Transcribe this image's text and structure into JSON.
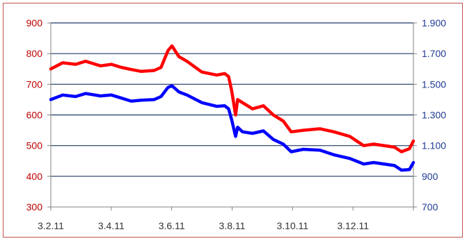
{
  "chart_data": {
    "type": "line",
    "title": "",
    "xlabel": "",
    "ylabel_left": "",
    "ylabel_right": "",
    "x_ticks": [
      "3.2.11",
      "3.4.11",
      "3.6.11",
      "3.8.11",
      "3.10.11",
      "3.12.11"
    ],
    "left_axis": {
      "ylim": [
        300,
        900
      ],
      "ticks": [
        "300",
        "400",
        "500",
        "600",
        "700",
        "800",
        "900"
      ]
    },
    "right_axis": {
      "ylim": [
        700,
        1900
      ],
      "ticks": [
        "700",
        "900",
        "1.100",
        "1.300",
        "1.500",
        "1.700",
        "1.900"
      ]
    },
    "grid": "horizontal",
    "x_range": [
      "2011-02-03",
      "2012-02-03"
    ],
    "series": [
      {
        "axis": "left",
        "color": "#ff0000",
        "x": [
          "2011-02-03",
          "2011-02-15",
          "2011-02-28",
          "2011-03-10",
          "2011-03-25",
          "2011-04-05",
          "2011-04-15",
          "2011-04-25",
          "2011-05-05",
          "2011-05-18",
          "2011-05-25",
          "2011-06-01",
          "2011-06-05",
          "2011-06-12",
          "2011-06-20",
          "2011-07-05",
          "2011-07-20",
          "2011-07-28",
          "2011-08-01",
          "2011-08-04",
          "2011-08-08",
          "2011-08-10",
          "2011-08-15",
          "2011-08-25",
          "2011-09-05",
          "2011-09-15",
          "2011-09-25",
          "2011-10-03",
          "2011-10-15",
          "2011-11-01",
          "2011-11-15",
          "2011-12-01",
          "2011-12-15",
          "2011-12-25",
          "2012-01-15",
          "2012-01-22",
          "2012-01-30",
          "2012-02-03"
        ],
        "y": [
          750,
          770,
          765,
          775,
          760,
          765,
          755,
          748,
          742,
          745,
          755,
          810,
          825,
          790,
          775,
          740,
          730,
          735,
          725,
          680,
          600,
          650,
          640,
          620,
          630,
          600,
          580,
          545,
          550,
          555,
          545,
          530,
          500,
          505,
          495,
          480,
          490,
          515
        ]
      },
      {
        "axis": "left",
        "color": "#0000ff",
        "x": [
          "2011-02-03",
          "2011-02-15",
          "2011-02-28",
          "2011-03-10",
          "2011-03-25",
          "2011-04-05",
          "2011-04-15",
          "2011-04-25",
          "2011-05-05",
          "2011-05-18",
          "2011-05-25",
          "2011-06-01",
          "2011-06-05",
          "2011-06-12",
          "2011-06-20",
          "2011-07-05",
          "2011-07-20",
          "2011-07-28",
          "2011-08-01",
          "2011-08-04",
          "2011-08-08",
          "2011-08-10",
          "2011-08-15",
          "2011-08-25",
          "2011-09-05",
          "2011-09-15",
          "2011-09-25",
          "2011-10-03",
          "2011-10-15",
          "2011-11-01",
          "2011-11-15",
          "2011-12-01",
          "2011-12-15",
          "2011-12-25",
          "2012-01-15",
          "2012-01-22",
          "2012-01-30",
          "2012-02-03"
        ],
        "y": [
          650,
          665,
          660,
          670,
          662,
          665,
          655,
          645,
          648,
          650,
          660,
          690,
          695,
          675,
          665,
          640,
          628,
          630,
          620,
          585,
          530,
          560,
          545,
          540,
          548,
          520,
          505,
          480,
          488,
          485,
          470,
          458,
          440,
          445,
          435,
          420,
          422,
          445
        ]
      }
    ]
  }
}
